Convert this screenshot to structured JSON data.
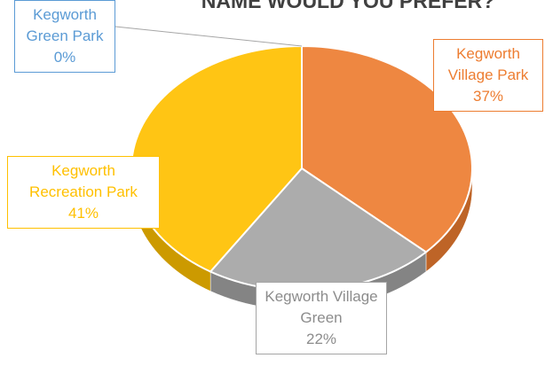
{
  "chart_data": {
    "type": "pie",
    "title": "NAME WOULD YOU PREFER?",
    "categories": [
      "Kegworth Green Park",
      "Kegworth Village Park",
      "Kegworth Village Green",
      "Kegworth Recreation Park"
    ],
    "values": [
      0,
      37,
      22,
      41
    ],
    "value_labels": [
      "0%",
      "37%",
      "22%",
      "41%"
    ],
    "colors": [
      "#5B9BD5",
      "#ED7D31",
      "#A5A5A5",
      "#FFC000"
    ]
  }
}
